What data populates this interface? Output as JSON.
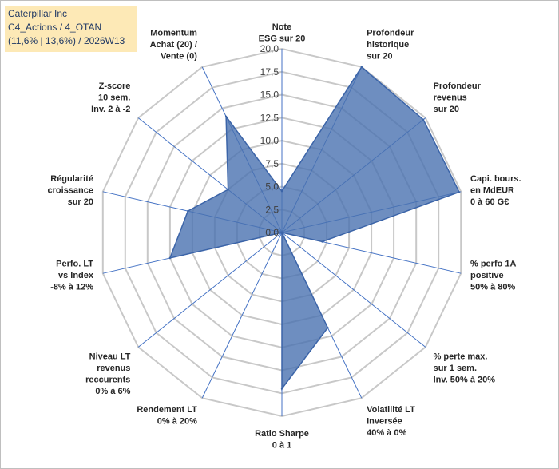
{
  "header": {
    "lines": [
      "Caterpillar Inc",
      "C4_Actions / 4_OTAN",
      "(11,6% | 13,6%) / 2026W13"
    ]
  },
  "chart_data": {
    "type": "radar",
    "rmin": 0,
    "rmax": 20,
    "ticks": [
      "0,0",
      "2,5",
      "5,0",
      "7,5",
      "10,0",
      "12,5",
      "15,0",
      "17,5",
      "20,0"
    ],
    "axes": [
      {
        "label": [
          "Note",
          "ESG sur 20"
        ],
        "value": 4.5
      },
      {
        "label": [
          "Profondeur",
          "historique",
          "sur 20"
        ],
        "value": 20
      },
      {
        "label": [
          "Profondeur",
          "revenus",
          "sur 20"
        ],
        "value": 19.7
      },
      {
        "label": [
          "Capi. bours.",
          "en MdEUR",
          "0 à 60 G€"
        ],
        "value": 19.8
      },
      {
        "label": [
          "% perfo 1A",
          "positive",
          "50% à 80%"
        ],
        "value": 4.5
      },
      {
        "label": [
          "% perte max.",
          "sur 1 sem.",
          "Inv. 50% à 20%"
        ],
        "value": 0
      },
      {
        "label": [
          "Volatilité LT",
          "Inversée",
          "40% à 0%"
        ],
        "value": 11.5
      },
      {
        "label": [
          "Ratio Sharpe",
          "0 à 1"
        ],
        "value": 17
      },
      {
        "label": [
          "Rendement LT",
          "0% à 20%"
        ],
        "value": 0
      },
      {
        "label": [
          "Niveau LT",
          "revenus",
          "reccurents",
          "0% à 6%"
        ],
        "value": 0
      },
      {
        "label": [
          "Perfo. LT",
          "vs Index",
          "-8% à 12%"
        ],
        "value": 12.5
      },
      {
        "label": [
          "Régularité",
          "croissance",
          "sur 20"
        ],
        "value": 10.5
      },
      {
        "label": [
          "Z-score",
          "10 sem.",
          "Inv. 2 à -2"
        ],
        "value": 7.5
      },
      {
        "label": [
          "Momentum",
          "Achat (20) /",
          "Vente (0)"
        ],
        "value": 14
      }
    ],
    "colors": {
      "fill": "#4a72b0",
      "fill_opacity": 0.8,
      "stroke": "#3b64a8",
      "grid": "#c8c8c8",
      "spoke": "#4472c4"
    }
  }
}
